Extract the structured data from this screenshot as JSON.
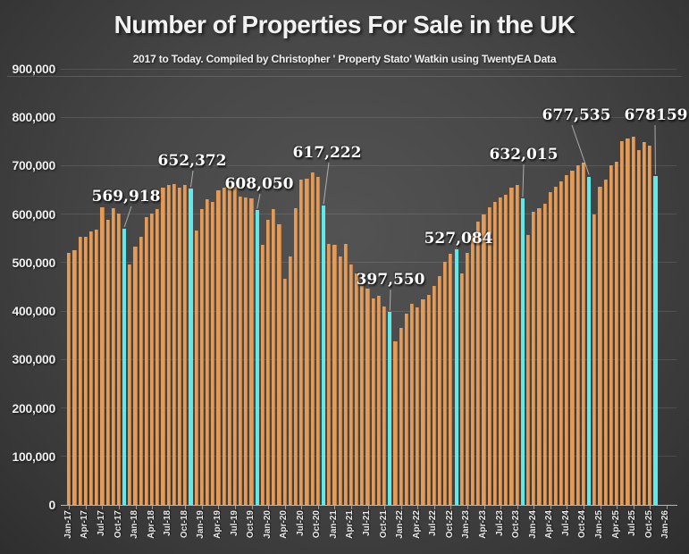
{
  "header": {
    "title": "Number of Properties For Sale in the UK",
    "subtitle": "2017 to Today. Compiled by Christopher ' Property Stato' Watkin using TwentyEA Data"
  },
  "chart_data": {
    "type": "bar",
    "title": "Number of Properties For Sale in the UK",
    "subtitle": "2017 to Today. Compiled by Christopher ' Property Stato' Watkin using TwentyEA Data",
    "start_month": "Jan-17",
    "frequency": "monthly",
    "ylim": [
      0,
      900000
    ],
    "grid": "horizontal",
    "bar_color": "#E59B58",
    "highlight_color": "#5FEAEA",
    "y_tick_labels": [
      "0",
      "100,000",
      "200,000",
      "300,000",
      "400,000",
      "500,000",
      "600,000",
      "700,000",
      "800,000",
      "900,000"
    ],
    "x_tick_labels": [
      "Jan-17",
      "Apr-17",
      "Jul-17",
      "Oct-17",
      "Jan-18",
      "Apr-18",
      "Jul-18",
      "Oct-18",
      "Jan-19",
      "Apr-19",
      "Jul-19",
      "Oct-19",
      "Jan-20",
      "Apr-20",
      "Jul-20",
      "Oct-20",
      "Jan-21",
      "Apr-21",
      "Jul-21",
      "Oct-21",
      "Jan-22",
      "Apr-22",
      "Jul-22",
      "Oct-22",
      "Jan-23",
      "Apr-23",
      "Jul-23",
      "Oct-23",
      "Jan-24",
      "Apr-24",
      "Jul-24",
      "Oct-24",
      "Jan-25",
      "Apr-25",
      "Jul-25",
      "Oct-25",
      "Jan-26"
    ],
    "values": [
      520000,
      525000,
      553000,
      554000,
      564000,
      568000,
      615000,
      589000,
      612000,
      602000,
      569918,
      497000,
      533000,
      554000,
      593000,
      601000,
      611000,
      655000,
      660000,
      663000,
      655000,
      660000,
      652372,
      567000,
      610000,
      630000,
      626000,
      650000,
      654000,
      658000,
      657000,
      637000,
      634000,
      632000,
      608050,
      537000,
      588000,
      610000,
      580000,
      466000,
      512000,
      613000,
      671000,
      674000,
      686000,
      677000,
      617222,
      539000,
      537000,
      512000,
      538000,
      496000,
      478000,
      452000,
      446000,
      426000,
      432000,
      409000,
      397550,
      337000,
      366000,
      395000,
      415000,
      407000,
      425000,
      433000,
      452000,
      473000,
      501000,
      518000,
      527084,
      478000,
      521000,
      556000,
      584000,
      600000,
      614000,
      625000,
      634000,
      640000,
      655000,
      660000,
      632015,
      557000,
      605000,
      612000,
      621000,
      645000,
      657000,
      668000,
      680000,
      690000,
      700000,
      706000,
      677535,
      600000,
      657000,
      671000,
      701000,
      708000,
      751000,
      757000,
      760000,
      732000,
      748000,
      742000,
      678159
    ],
    "highlight_indices": [
      10,
      22,
      34,
      46,
      58,
      70,
      82,
      94,
      106
    ],
    "highlighted_months": [
      "Nov-17",
      "Nov-18",
      "Nov-19",
      "Nov-20",
      "Nov-21",
      "Nov-22",
      "Nov-23",
      "Nov-24",
      "Nov-25"
    ],
    "annotations": [
      {
        "index": 10,
        "text": "569,918"
      },
      {
        "index": 22,
        "text": "652,372"
      },
      {
        "index": 34,
        "text": "608,050"
      },
      {
        "index": 46,
        "text": "617,222"
      },
      {
        "index": 58,
        "text": "397,550"
      },
      {
        "index": 70,
        "text": "527,084"
      },
      {
        "index": 82,
        "text": "632,015"
      },
      {
        "index": 94,
        "text": "677,535"
      },
      {
        "index": 106,
        "text": "678159"
      }
    ]
  }
}
